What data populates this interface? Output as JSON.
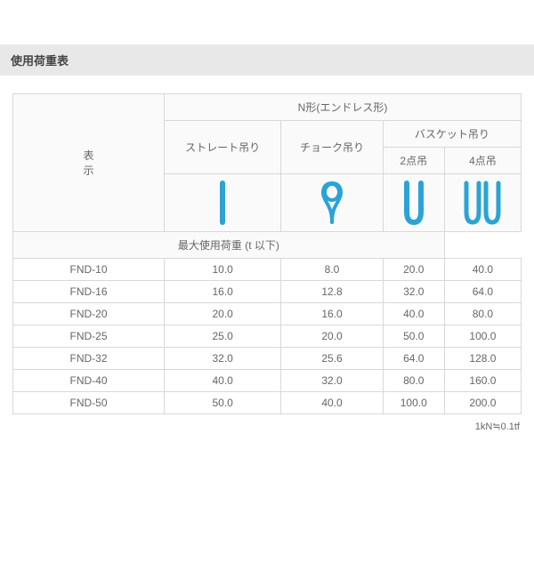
{
  "title": "使用荷重表",
  "header": {
    "rowLabel": "表\n示",
    "topGroup": "N形(エンドレス形)",
    "col1": "ストレート吊り",
    "col2": "チョーク吊り",
    "basketGroup": "バスケット吊り",
    "col3": "2点吊",
    "col4": "4点吊",
    "maxLoadRow": "最大使用荷重 (t 以下)"
  },
  "iconColor": "#2aa3d6",
  "rows": [
    {
      "label": "FND-10",
      "v1": "10.0",
      "v2": "8.0",
      "v3": "20.0",
      "v4": "40.0"
    },
    {
      "label": "FND-16",
      "v1": "16.0",
      "v2": "12.8",
      "v3": "32.0",
      "v4": "64.0"
    },
    {
      "label": "FND-20",
      "v1": "20.0",
      "v2": "16.0",
      "v3": "40.0",
      "v4": "80.0"
    },
    {
      "label": "FND-25",
      "v1": "25.0",
      "v2": "20.0",
      "v3": "50.0",
      "v4": "100.0"
    },
    {
      "label": "FND-32",
      "v1": "32.0",
      "v2": "25.6",
      "v3": "64.0",
      "v4": "128.0"
    },
    {
      "label": "FND-40",
      "v1": "40.0",
      "v2": "32.0",
      "v3": "80.0",
      "v4": "160.0"
    },
    {
      "label": "FND-50",
      "v1": "50.0",
      "v2": "40.0",
      "v3": "100.0",
      "v4": "200.0"
    }
  ],
  "footnote": "1kN≒0.1tf"
}
